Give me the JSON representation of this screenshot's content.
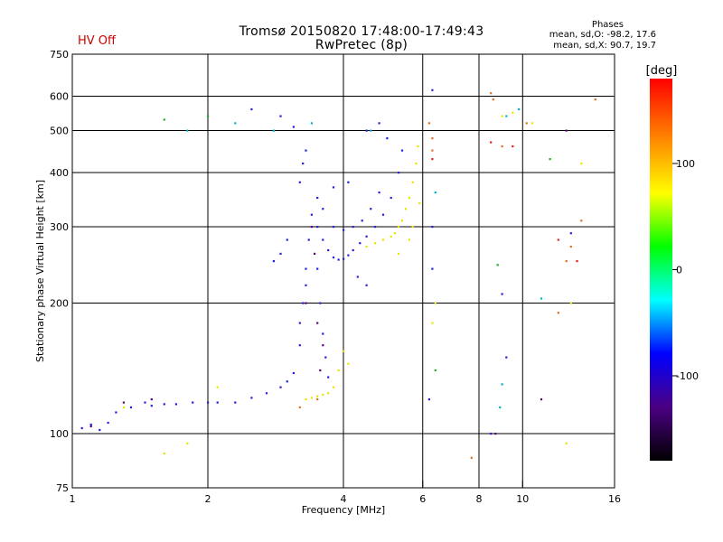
{
  "header": {
    "hv_status": "HV Off",
    "title_line1": "Tromsø 20150820 17:48:00-17:49:43",
    "title_line2": "RwPretec (8p)",
    "phases_heading": "Phases",
    "phases_stat_o": "mean, sd,O: -98.2, 17.6",
    "phases_stat_x": "mean, sd,X:  90.7, 19.7"
  },
  "chart_data": {
    "type": "scatter",
    "title": "Tromsø 20150820 17:48:00-17:49:43",
    "subtitle": "RwPretec (8p)",
    "xlabel": "Frequency [MHz]",
    "ylabel": "Stationary phase Virtual Height [km]",
    "x_scale": "log",
    "y_scale": "log",
    "xlim": [
      1,
      16
    ],
    "ylim": [
      75,
      750
    ],
    "x_ticks": [
      1,
      2,
      4,
      6,
      8,
      10,
      16
    ],
    "y_ticks": [
      75,
      100,
      200,
      300,
      400,
      500,
      600,
      750
    ],
    "grid": true,
    "colorbar": {
      "label": "[deg]",
      "range": [
        -180,
        180
      ],
      "ticks": [
        100,
        0,
        -100
      ],
      "colors": [
        "#000000",
        "#4b0082",
        "#0000ff",
        "#00ffff",
        "#00ff00",
        "#ffff00",
        "#ff8000",
        "#ff0000"
      ]
    },
    "series": [
      {
        "color": "#2020dd",
        "points": [
          [
            1.05,
            103
          ],
          [
            1.1,
            105
          ],
          [
            1.15,
            102
          ],
          [
            1.2,
            106
          ],
          [
            1.25,
            112
          ],
          [
            1.35,
            115
          ],
          [
            1.45,
            118
          ],
          [
            1.5,
            116
          ],
          [
            1.6,
            117
          ],
          [
            1.7,
            117
          ],
          [
            1.85,
            118
          ],
          [
            2.0,
            118
          ],
          [
            2.1,
            118
          ],
          [
            2.3,
            118
          ],
          [
            2.5,
            121
          ],
          [
            2.7,
            124
          ],
          [
            2.9,
            128
          ],
          [
            3.0,
            132
          ],
          [
            3.1,
            138
          ],
          [
            3.2,
            160
          ],
          [
            3.25,
            200
          ],
          [
            3.3,
            240
          ],
          [
            3.35,
            280
          ],
          [
            3.4,
            320
          ],
          [
            3.5,
            300
          ],
          [
            3.6,
            280
          ],
          [
            3.7,
            265
          ],
          [
            3.8,
            255
          ],
          [
            3.9,
            252
          ],
          [
            4.0,
            253
          ],
          [
            4.1,
            258
          ],
          [
            4.2,
            265
          ],
          [
            4.35,
            275
          ],
          [
            4.5,
            285
          ],
          [
            4.7,
            300
          ],
          [
            4.9,
            320
          ],
          [
            5.1,
            350
          ],
          [
            5.3,
            400
          ],
          [
            5.4,
            450
          ],
          [
            3.5,
            240
          ],
          [
            3.55,
            200
          ],
          [
            3.6,
            170
          ],
          [
            3.65,
            150
          ],
          [
            3.7,
            135
          ],
          [
            3.2,
            180
          ],
          [
            3.3,
            220
          ],
          [
            3.5,
            350
          ],
          [
            3.6,
            330
          ],
          [
            3.8,
            300
          ],
          [
            4.0,
            295
          ],
          [
            4.2,
            300
          ],
          [
            4.4,
            310
          ],
          [
            4.6,
            330
          ],
          [
            4.8,
            360
          ],
          [
            4.3,
            230
          ],
          [
            4.5,
            220
          ],
          [
            2.8,
            250
          ],
          [
            2.9,
            260
          ],
          [
            3.0,
            280
          ],
          [
            3.2,
            380
          ],
          [
            3.25,
            420
          ],
          [
            3.3,
            450
          ],
          [
            3.8,
            370
          ],
          [
            4.1,
            380
          ],
          [
            4.5,
            500
          ],
          [
            4.8,
            520
          ],
          [
            5.0,
            480
          ],
          [
            2.5,
            560
          ],
          [
            2.9,
            540
          ],
          [
            3.1,
            510
          ],
          [
            6.3,
            620
          ],
          [
            6.3,
            300
          ],
          [
            6.3,
            240
          ],
          [
            6.2,
            120
          ],
          [
            8.5,
            100
          ],
          [
            9.2,
            150
          ],
          [
            9.0,
            210
          ],
          [
            12.8,
            290
          ]
        ]
      },
      {
        "color": "#e6e600",
        "points": [
          [
            3.3,
            120
          ],
          [
            3.4,
            121
          ],
          [
            3.5,
            122
          ],
          [
            3.6,
            123
          ],
          [
            3.7,
            124
          ],
          [
            3.8,
            128
          ],
          [
            3.9,
            140
          ],
          [
            4.0,
            155
          ],
          [
            4.1,
            145
          ],
          [
            4.5,
            270
          ],
          [
            4.7,
            275
          ],
          [
            4.9,
            280
          ],
          [
            5.1,
            285
          ],
          [
            5.2,
            290
          ],
          [
            5.3,
            300
          ],
          [
            5.4,
            310
          ],
          [
            5.5,
            330
          ],
          [
            5.6,
            350
          ],
          [
            5.7,
            380
          ],
          [
            5.8,
            420
          ],
          [
            5.85,
            460
          ],
          [
            5.3,
            260
          ],
          [
            5.6,
            280
          ],
          [
            5.7,
            300
          ],
          [
            5.9,
            340
          ],
          [
            6.3,
            180
          ],
          [
            6.4,
            200
          ],
          [
            1.3,
            115
          ],
          [
            1.6,
            90
          ],
          [
            1.8,
            95
          ],
          [
            2.1,
            128
          ],
          [
            9.0,
            540
          ],
          [
            9.5,
            550
          ],
          [
            10.5,
            520
          ],
          [
            12.5,
            95
          ],
          [
            12.8,
            200
          ],
          [
            13.5,
            420
          ]
        ]
      },
      {
        "color": "#e07020",
        "points": [
          [
            3.2,
            115
          ],
          [
            3.5,
            120
          ],
          [
            6.3,
            450
          ],
          [
            6.3,
            480
          ],
          [
            6.2,
            520
          ],
          [
            8.5,
            610
          ],
          [
            8.6,
            590
          ],
          [
            9.0,
            460
          ],
          [
            10.2,
            520
          ],
          [
            12.0,
            190
          ],
          [
            12.5,
            250
          ],
          [
            12.8,
            270
          ],
          [
            13.5,
            310
          ],
          [
            14.5,
            590
          ],
          [
            7.7,
            88
          ]
        ]
      },
      {
        "color": "#00b0d0",
        "points": [
          [
            1.8,
            500
          ],
          [
            2.3,
            520
          ],
          [
            2.8,
            500
          ],
          [
            3.4,
            520
          ],
          [
            4.6,
            500
          ],
          [
            6.4,
            360
          ],
          [
            8.9,
            115
          ],
          [
            9.0,
            130
          ],
          [
            9.2,
            540
          ],
          [
            9.8,
            560
          ],
          [
            11.0,
            205
          ]
        ]
      },
      {
        "color": "#20b020",
        "points": [
          [
            1.6,
            530
          ],
          [
            2.0,
            540
          ],
          [
            6.4,
            140
          ],
          [
            8.8,
            245
          ],
          [
            11.5,
            430
          ]
        ]
      },
      {
        "color": "#600080",
        "points": [
          [
            1.1,
            104
          ],
          [
            1.3,
            118
          ],
          [
            1.5,
            120
          ],
          [
            3.3,
            200
          ],
          [
            3.4,
            300
          ],
          [
            3.45,
            260
          ],
          [
            3.5,
            180
          ],
          [
            3.55,
            140
          ],
          [
            3.6,
            160
          ],
          [
            8.7,
            100
          ],
          [
            12.5,
            500
          ],
          [
            11.0,
            120
          ]
        ]
      },
      {
        "color": "#e02020",
        "points": [
          [
            6.3,
            430
          ],
          [
            8.5,
            470
          ],
          [
            9.5,
            460
          ],
          [
            12.0,
            280
          ],
          [
            13.2,
            250
          ]
        ]
      }
    ]
  }
}
